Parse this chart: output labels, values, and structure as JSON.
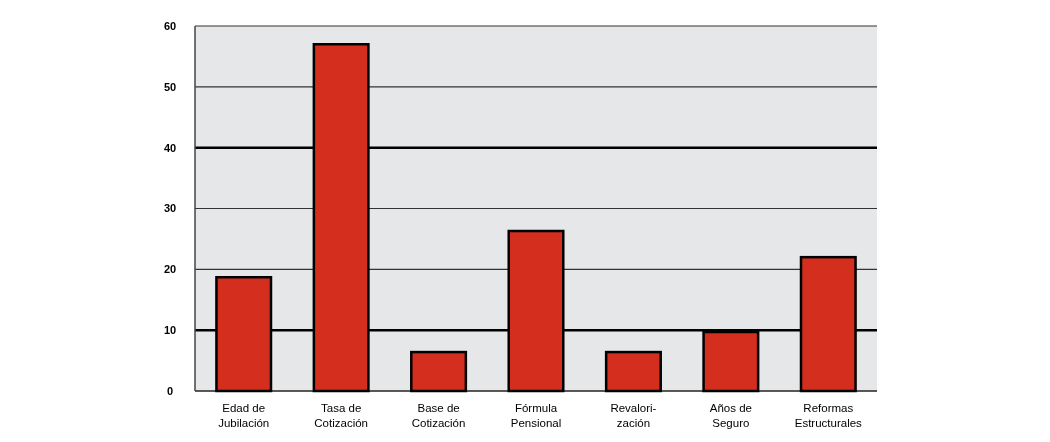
{
  "chart_data": {
    "type": "bar",
    "categories": [
      "Edad de\nJubilación",
      "Tasa de\nCotización",
      "Base de\nCotización",
      "Fórmula\nPensional",
      "Revalori-\nzación",
      "Años de\nSeguro",
      "Reformas\nEstructurales"
    ],
    "values": [
      18.7,
      57,
      6.4,
      26.3,
      6.4,
      9.7,
      22
    ],
    "color": "#d42e1e",
    "ylim": [
      0,
      60
    ],
    "yticks": [
      0,
      10,
      20,
      30,
      40,
      50,
      60
    ],
    "grid": "y"
  }
}
